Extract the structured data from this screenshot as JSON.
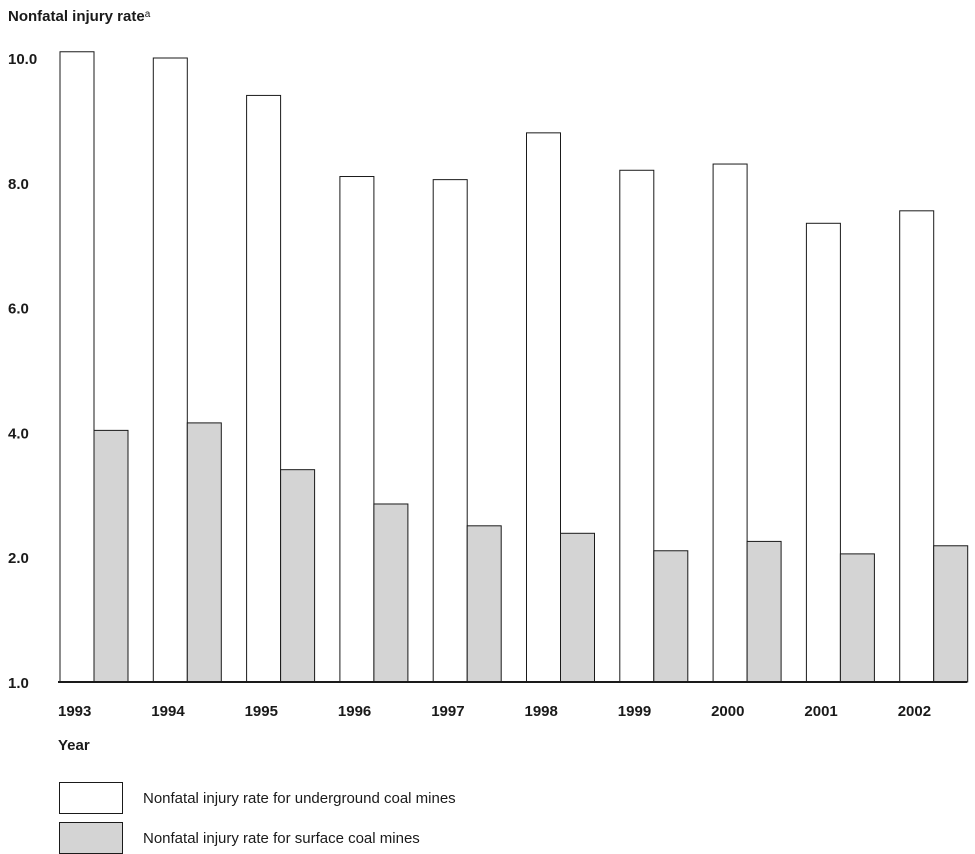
{
  "chart_data": {
    "type": "bar",
    "ylabel": "Nonfatal injury rate",
    "ylabel_superscript": "a",
    "xlabel": "Year",
    "categories": [
      "1993",
      "1994",
      "1995",
      "1996",
      "1997",
      "1998",
      "1999",
      "2000",
      "2001",
      "2002"
    ],
    "series": [
      {
        "name": "Nonfatal injury rate for underground coal mines",
        "values": [
          10.1,
          10.0,
          9.4,
          8.1,
          8.05,
          8.8,
          8.2,
          8.3,
          7.35,
          7.55
        ],
        "color": "#ffffff"
      },
      {
        "name": "Nonfatal injury rate for surface coal mines",
        "values": [
          4.03,
          4.15,
          3.4,
          2.85,
          2.5,
          2.38,
          2.1,
          2.25,
          2.05,
          2.18
        ],
        "color": "#d4d4d4"
      }
    ],
    "ylim": [
      1.0,
      10.0
    ],
    "yticks": [
      "1.0",
      "2.0",
      "4.0",
      "6.0",
      "8.0",
      "10.0"
    ],
    "ytick_values": [
      1.0,
      2.0,
      4.0,
      6.0,
      8.0,
      10.0
    ],
    "grid": false,
    "legend_position": "bottom-left"
  }
}
